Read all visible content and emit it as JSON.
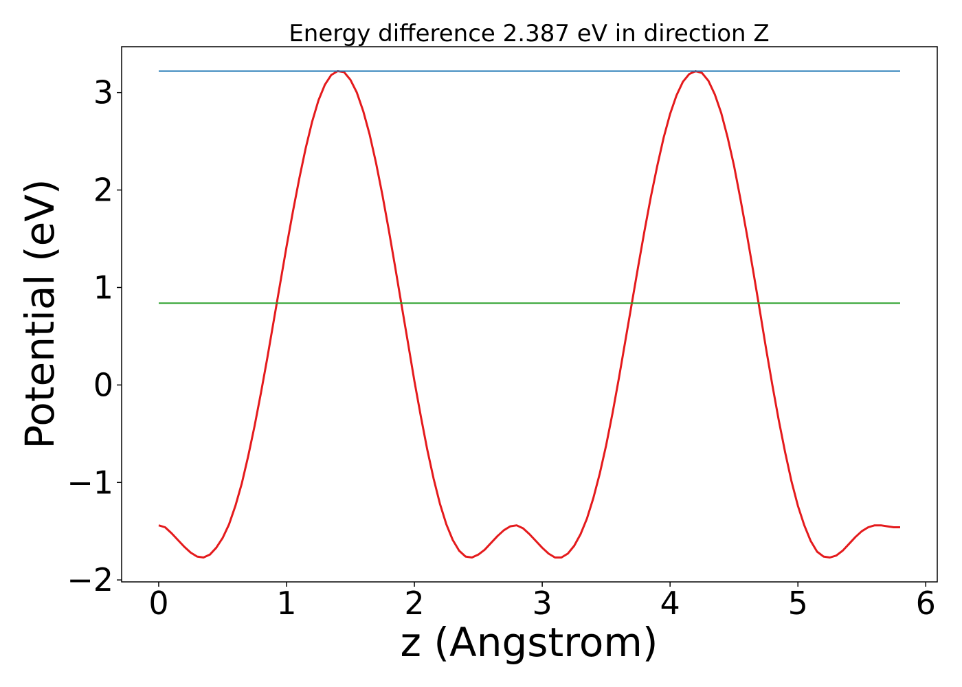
{
  "chart_data": {
    "type": "line",
    "title": "Energy difference 2.387 eV in direction Z",
    "xlabel": "z (Angstrom)",
    "ylabel": "Potential (eV)",
    "xlim": [
      -0.29,
      6.09
    ],
    "ylim": [
      -2.02,
      3.47
    ],
    "xticks": [
      0,
      1,
      2,
      3,
      4,
      5,
      6
    ],
    "xtick_labels": [
      "0",
      "1",
      "2",
      "3",
      "4",
      "5",
      "6"
    ],
    "yticks": [
      -2,
      -1,
      0,
      1,
      2,
      3
    ],
    "ytick_labels": [
      "−2",
      "−1",
      "0",
      "1",
      "2",
      "3"
    ],
    "grid": false,
    "legend": "none",
    "series": [
      {
        "color": "#e41a1c",
        "x": [
          0.0,
          0.05,
          0.1,
          0.15,
          0.2,
          0.25,
          0.3,
          0.35,
          0.4,
          0.45,
          0.5,
          0.55,
          0.6,
          0.65,
          0.7,
          0.75,
          0.8,
          0.85,
          0.9,
          0.95,
          1.0,
          1.05,
          1.1,
          1.15,
          1.2,
          1.25,
          1.3,
          1.35,
          1.4,
          1.45,
          1.5,
          1.55,
          1.6,
          1.65,
          1.7,
          1.75,
          1.8,
          1.85,
          1.9,
          1.95,
          2.0,
          2.05,
          2.1,
          2.15,
          2.2,
          2.25,
          2.3,
          2.35,
          2.4,
          2.45,
          2.5,
          2.55,
          2.6,
          2.65,
          2.7,
          2.75,
          2.8,
          2.85,
          2.9,
          2.95,
          3.0,
          3.05,
          3.1,
          3.15,
          3.2,
          3.25,
          3.3,
          3.35,
          3.4,
          3.45,
          3.5,
          3.55,
          3.6,
          3.65,
          3.7,
          3.75,
          3.8,
          3.85,
          3.9,
          3.95,
          4.0,
          4.05,
          4.1,
          4.15,
          4.2,
          4.25,
          4.3,
          4.35,
          4.4,
          4.45,
          4.5,
          4.55,
          4.6,
          4.65,
          4.7,
          4.75,
          4.8,
          4.85,
          4.9,
          4.95,
          5.0,
          5.05,
          5.1,
          5.15,
          5.2,
          5.25,
          5.3,
          5.35,
          5.4,
          5.45,
          5.5,
          5.55,
          5.6,
          5.65,
          5.7,
          5.75,
          5.8
        ],
        "y": [
          -1.44,
          -1.46,
          -1.52,
          -1.59,
          -1.66,
          -1.72,
          -1.76,
          -1.77,
          -1.74,
          -1.67,
          -1.57,
          -1.43,
          -1.24,
          -1.01,
          -0.73,
          -0.42,
          -0.08,
          0.28,
          0.66,
          1.04,
          1.42,
          1.78,
          2.12,
          2.43,
          2.7,
          2.92,
          3.08,
          3.18,
          3.22,
          3.21,
          3.13,
          3.0,
          2.81,
          2.57,
          2.28,
          1.95,
          1.59,
          1.21,
          0.82,
          0.43,
          0.04,
          -0.32,
          -0.66,
          -0.96,
          -1.22,
          -1.43,
          -1.59,
          -1.7,
          -1.76,
          -1.77,
          -1.74,
          -1.69,
          -1.62,
          -1.55,
          -1.49,
          -1.45,
          -1.44,
          -1.47,
          -1.53,
          -1.6,
          -1.67,
          -1.73,
          -1.77,
          -1.77,
          -1.73,
          -1.65,
          -1.53,
          -1.37,
          -1.16,
          -0.91,
          -0.62,
          -0.29,
          0.07,
          0.45,
          0.83,
          1.21,
          1.58,
          1.93,
          2.25,
          2.54,
          2.78,
          2.97,
          3.11,
          3.19,
          3.22,
          3.2,
          3.12,
          2.98,
          2.79,
          2.54,
          2.25,
          1.91,
          1.55,
          1.17,
          0.78,
          0.38,
          0.0,
          -0.36,
          -0.69,
          -0.99,
          -1.24,
          -1.44,
          -1.6,
          -1.71,
          -1.76,
          -1.77,
          -1.75,
          -1.7,
          -1.63,
          -1.56,
          -1.5,
          -1.46,
          -1.44,
          -1.44,
          -1.45,
          -1.46,
          -1.46
        ]
      },
      {
        "color": "#1f77b4",
        "x": [
          0.0,
          5.8
        ],
        "y": [
          3.22,
          3.22
        ]
      },
      {
        "color": "#2ca02c",
        "x": [
          0.0,
          5.8
        ],
        "y": [
          0.84,
          0.84
        ]
      }
    ]
  }
}
